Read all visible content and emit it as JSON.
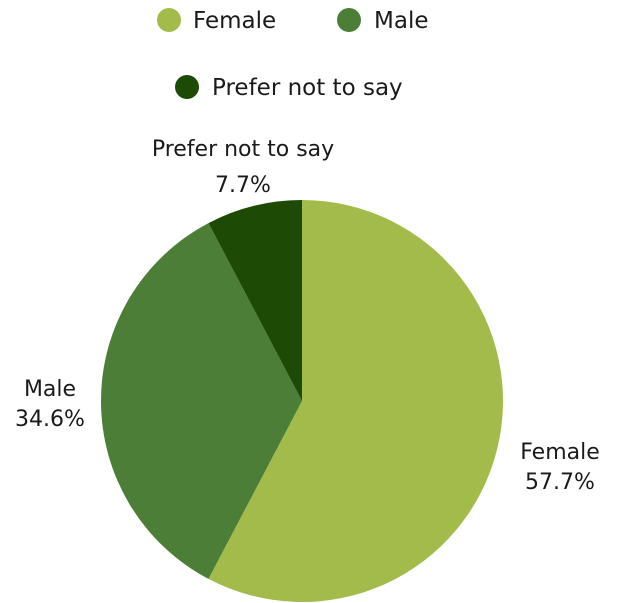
{
  "chart_data": {
    "type": "pie",
    "title": "",
    "legend_position": "top",
    "series": [
      {
        "name": "Female",
        "value": 57.7,
        "label": "57.7%",
        "color": "#a2bb4b"
      },
      {
        "name": "Male",
        "value": 34.6,
        "label": "34.6%",
        "color": "#4c7e37"
      },
      {
        "name": "Prefer not to say",
        "value": 7.7,
        "label": "7.7%",
        "color": "#1d4a04"
      }
    ]
  }
}
